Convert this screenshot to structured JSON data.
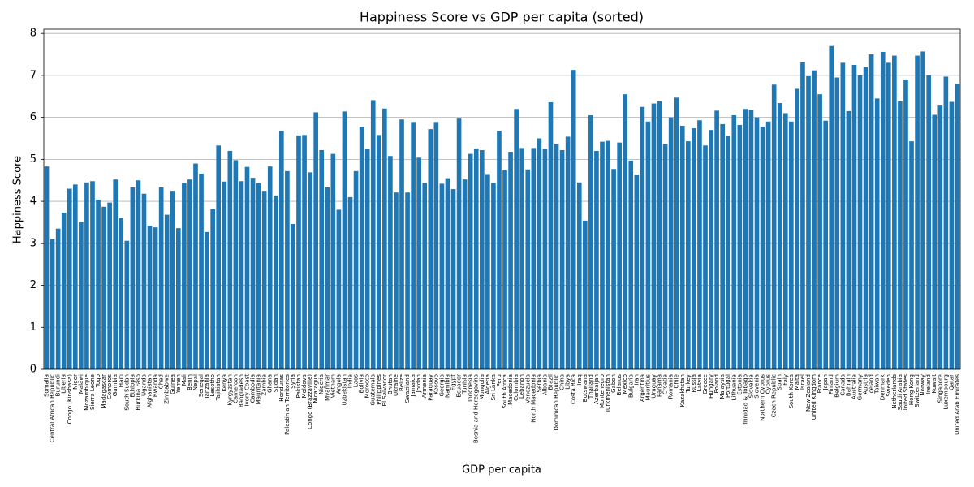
{
  "chart_data": {
    "type": "bar",
    "title": "Happiness Score vs GDP per capita (sorted)",
    "x_label": "GDP per capita",
    "y_label": "Happiness Score",
    "color": "#1f77b4",
    "grid": true,
    "ylim": [
      0,
      8.1
    ],
    "yticks": [
      0,
      1,
      2,
      3,
      4,
      5,
      6,
      7,
      8
    ],
    "categories": [
      "Somalia",
      "Central African Republic",
      "Burundi",
      "Liberia",
      "Congo (Kinshasa)",
      "Niger",
      "Malawi",
      "Mozambique",
      "Sierra Leone",
      "Togo",
      "Madagascar",
      "Comoros",
      "Gambia",
      "Haiti",
      "South Sudan",
      "Ethiopia",
      "Burkina Faso",
      "Uganda",
      "Afghanistan",
      "Rwanda",
      "Chad",
      "Zimbabwe",
      "Guinea",
      "Yemen",
      "Mali",
      "Benin",
      "Nepal",
      "Senegal",
      "Tanzania",
      "Lesotho",
      "Tajikistan",
      "Kenya",
      "Kyrgyzstan",
      "Cameroon",
      "Bangladesh",
      "Ivory Coast",
      "Cambodia",
      "Mauritania",
      "Zambia",
      "Ghana",
      "Sudan",
      "Honduras",
      "Palestinian Territories",
      "Syria",
      "Pakistan",
      "Moldova",
      "Congo (Brazzaville)",
      "Nicaragua",
      "Nigeria",
      "Myanmar",
      "Vietnam",
      "Angola",
      "Uzbekistan",
      "India",
      "Laos",
      "Bolivia",
      "Morocco",
      "Guatemala",
      "Philippines",
      "El Salvador",
      "Bhutan",
      "Ukraine",
      "Belize",
      "Swaziland",
      "Jamaica",
      "Jordan",
      "Armenia",
      "Paraguay",
      "Kosovo",
      "Georgia",
      "Namibia",
      "Egypt",
      "Ecuador",
      "Tunisia",
      "Indonesia",
      "Bosnia and Herzegovina",
      "Mongolia",
      "Algeria",
      "Sri Lanka",
      "Peru",
      "South Africa",
      "Macedonia",
      "Colombia",
      "Lebanon",
      "Venezuela",
      "North Macedonia",
      "Serbia",
      "Albania",
      "Brazil",
      "Dominican Republic",
      "China",
      "Libya",
      "Costa Rica",
      "Iraq",
      "Botswana",
      "Thailand",
      "Azerbaijan",
      "Montenegro",
      "Turkmenistan",
      "Gabon",
      "Belarus",
      "Mexico",
      "Bulgaria",
      "Iran",
      "Argentina",
      "Mauritius",
      "Uruguay",
      "Panama",
      "Croatia",
      "Romania",
      "Chile",
      "Kazakhstan",
      "Turkey",
      "Russia",
      "Latvia",
      "Greece",
      "Hungary",
      "Poland",
      "Malaysia",
      "Portugal",
      "Lithuania",
      "Estonia",
      "Trinidad & Tobago",
      "Slovakia",
      "Slovenia",
      "Northern Cyprus",
      "Cyprus",
      "Czech Republic",
      "Spain",
      "Italy",
      "South Korea",
      "Malta",
      "Israel",
      "New Zealand",
      "United Kingdom",
      "France",
      "Japan",
      "Finland",
      "Belgium",
      "Canada",
      "Bahrain",
      "Australia",
      "Germany",
      "Austria",
      "Iceland",
      "Taiwan",
      "Denmark",
      "Sweden",
      "Netherlands",
      "Saudi Arabia",
      "United States",
      "Hong Kong",
      "Switzerland",
      "Norway",
      "Ireland",
      "Kuwait",
      "Singapore",
      "Luxembourg",
      "Qatar",
      "United Arab Emirates"
    ],
    "values": [
      4.83,
      3.1,
      3.35,
      3.73,
      4.3,
      4.4,
      3.5,
      4.45,
      4.48,
      4.04,
      3.87,
      3.97,
      4.52,
      3.6,
      3.06,
      4.33,
      4.5,
      4.18,
      3.42,
      3.38,
      4.33,
      3.68,
      4.25,
      3.36,
      4.43,
      4.52,
      4.9,
      4.66,
      3.27,
      3.81,
      5.33,
      4.47,
      5.2,
      4.98,
      4.48,
      4.82,
      4.56,
      4.43,
      4.25,
      4.83,
      4.14,
      5.68,
      4.72,
      3.46,
      5.57,
      5.58,
      4.69,
      6.12,
      5.22,
      4.33,
      5.13,
      3.8,
      6.14,
      4.1,
      4.72,
      5.78,
      5.24,
      6.41,
      5.58,
      6.21,
      5.08,
      4.21,
      5.95,
      4.21,
      5.89,
      5.04,
      4.44,
      5.72,
      5.89,
      4.42,
      4.55,
      4.29,
      5.99,
      4.52,
      5.13,
      5.26,
      5.22,
      4.65,
      4.44,
      5.68,
      4.74,
      5.18,
      6.2,
      5.27,
      4.76,
      5.27,
      5.5,
      5.25,
      6.36,
      5.37,
      5.22,
      5.54,
      7.13,
      4.45,
      3.54,
      6.05,
      5.2,
      5.42,
      5.44,
      4.77,
      5.4,
      6.55,
      4.97,
      4.64,
      6.25,
      5.9,
      6.33,
      6.38,
      5.37,
      6.0,
      6.47,
      5.8,
      5.43,
      5.74,
      5.93,
      5.33,
      5.7,
      6.16,
      5.84,
      5.56,
      6.05,
      5.82,
      6.2,
      6.18,
      6.0,
      5.78,
      5.9,
      6.78,
      6.34,
      6.1,
      5.9,
      6.68,
      7.31,
      6.98,
      7.12,
      6.55,
      5.92,
      7.7,
      6.95,
      7.3,
      6.15,
      7.25,
      7.0,
      7.2,
      7.5,
      6.45,
      7.56,
      7.3,
      7.47,
      6.38,
      6.9,
      5.43,
      7.47,
      7.57,
      7.0,
      6.06,
      6.3,
      6.97,
      6.37,
      6.8
    ]
  }
}
